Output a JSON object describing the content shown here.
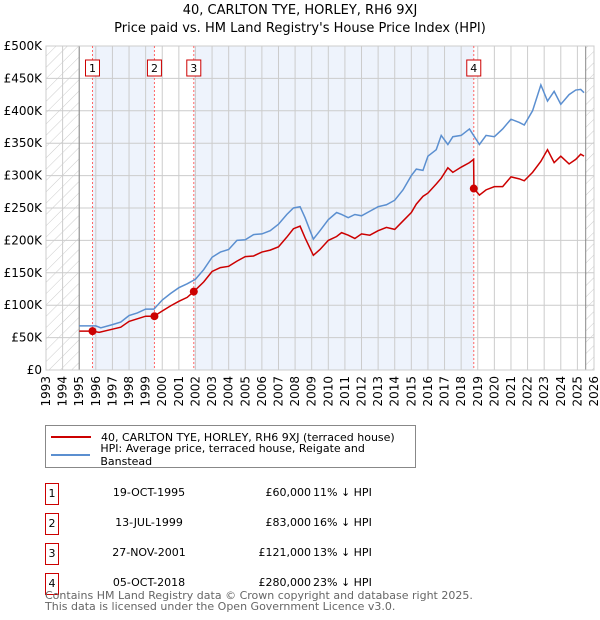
{
  "title": "40, CARLTON TYE, HORLEY, RH6 9XJ",
  "subtitle": "Price paid vs. HM Land Registry's House Price Index (HPI)",
  "chart_data": {
    "type": "line",
    "xlim": [
      1993,
      2026
    ],
    "ylim": [
      0,
      500000
    ],
    "x_ticks": [
      "1993",
      "1994",
      "1995",
      "1996",
      "1997",
      "1998",
      "1999",
      "2000",
      "2001",
      "2002",
      "2003",
      "2004",
      "2005",
      "2006",
      "2007",
      "2008",
      "2009",
      "2010",
      "2011",
      "2012",
      "2013",
      "2014",
      "2015",
      "2016",
      "2017",
      "2018",
      "2019",
      "2020",
      "2021",
      "2022",
      "2023",
      "2024",
      "2025",
      "2026"
    ],
    "y_ticks": [
      {
        "v": 0,
        "l": "£0"
      },
      {
        "v": 50000,
        "l": "£50K"
      },
      {
        "v": 100000,
        "l": "£100K"
      },
      {
        "v": 150000,
        "l": "£150K"
      },
      {
        "v": 200000,
        "l": "£200K"
      },
      {
        "v": 250000,
        "l": "£250K"
      },
      {
        "v": 300000,
        "l": "£300K"
      },
      {
        "v": 350000,
        "l": "£350K"
      },
      {
        "v": 400000,
        "l": "£400K"
      },
      {
        "v": 450000,
        "l": "£450K"
      },
      {
        "v": 500000,
        "l": "£500K"
      }
    ],
    "data_start": 1995,
    "data_end": 2025.5,
    "series": [
      {
        "name": "40, CARLTON TYE, HORLEY, RH6 9XJ (terraced house)",
        "color": "#cc0000",
        "x": [
          1995,
          1995.8,
          1996.2,
          1997,
          1997.5,
          1998,
          1998.5,
          1999,
          1999.5,
          2000,
          2000.5,
          2001,
          2001.5,
          2001.9,
          2002.5,
          2003,
          2003.5,
          2004,
          2004.5,
          2005,
          2005.5,
          2006,
          2006.5,
          2007,
          2007.5,
          2007.9,
          2008.3,
          2008.6,
          2009.1,
          2009.5,
          2010,
          2010.5,
          2010.8,
          2011.2,
          2011.6,
          2012,
          2012.5,
          2013,
          2013.5,
          2014,
          2014.5,
          2015,
          2015.3,
          2015.7,
          2016,
          2016.5,
          2016.8,
          2017.2,
          2017.5,
          2018,
          2018.5,
          2018.75,
          2018.77,
          2019.1,
          2019.5,
          2020,
          2020.5,
          2021,
          2021.5,
          2021.8,
          2022.3,
          2022.8,
          2023.2,
          2023.6,
          2024,
          2024.5,
          2024.9,
          2025.2,
          2025.4
        ],
        "y": [
          60000,
          60000,
          58000,
          63000,
          66000,
          75000,
          79000,
          83000,
          83000,
          91000,
          99000,
          106000,
          112000,
          121000,
          136000,
          152000,
          158000,
          160000,
          168000,
          175000,
          176000,
          182000,
          185000,
          190000,
          205000,
          218000,
          222000,
          204000,
          177000,
          186000,
          200000,
          206000,
          212000,
          208000,
          203000,
          210000,
          208000,
          215000,
          220000,
          217000,
          230000,
          243000,
          256000,
          268000,
          273000,
          287000,
          296000,
          312000,
          305000,
          313000,
          320000,
          325000,
          280000,
          270000,
          278000,
          283000,
          283000,
          298000,
          295000,
          292000,
          305000,
          322000,
          340000,
          320000,
          330000,
          318000,
          325000,
          333000,
          330000
        ]
      },
      {
        "name": "HPI: Average price, terraced house, Reigate and Banstead",
        "color": "#5b8fd0",
        "x": [
          1995,
          1996,
          1996.3,
          1997,
          1997.5,
          1998,
          1998.5,
          1999,
          1999.5,
          2000,
          2000.5,
          2001,
          2001.5,
          2002,
          2002.5,
          2003,
          2003.5,
          2004,
          2004.5,
          2005,
          2005.5,
          2006,
          2006.5,
          2007,
          2007.5,
          2007.9,
          2008.3,
          2008.6,
          2009.1,
          2009.5,
          2010,
          2010.5,
          2010.8,
          2011.2,
          2011.6,
          2012,
          2012.5,
          2013,
          2013.5,
          2014,
          2014.5,
          2015,
          2015.3,
          2015.7,
          2016,
          2016.5,
          2016.8,
          2017.2,
          2017.5,
          2018,
          2018.5,
          2018.75,
          2019.1,
          2019.5,
          2020,
          2020.5,
          2021,
          2021.5,
          2021.8,
          2022.3,
          2022.8,
          2023.2,
          2023.6,
          2024,
          2024.5,
          2024.9,
          2025.2,
          2025.4
        ],
        "y": [
          68000,
          68000,
          65000,
          70000,
          74000,
          84000,
          88000,
          94000,
          94000,
          108000,
          118000,
          127000,
          133000,
          140000,
          155000,
          174000,
          182000,
          186000,
          200000,
          201000,
          209000,
          210000,
          215000,
          225000,
          240000,
          250000,
          252000,
          235000,
          202000,
          215000,
          232000,
          243000,
          240000,
          235000,
          240000,
          238000,
          245000,
          252000,
          255000,
          262000,
          278000,
          300000,
          310000,
          308000,
          330000,
          340000,
          362000,
          348000,
          360000,
          362000,
          372000,
          362000,
          348000,
          362000,
          360000,
          372000,
          387000,
          382000,
          378000,
          400000,
          440000,
          415000,
          430000,
          410000,
          425000,
          432000,
          433000,
          428000
        ]
      }
    ],
    "sales": [
      {
        "n": "1",
        "x": 1995.8,
        "y": 60000,
        "date": "19-OCT-1995",
        "price": "£60,000",
        "diff": "11% ↓ HPI"
      },
      {
        "n": "2",
        "x": 1999.53,
        "y": 83000,
        "date": "13-JUL-1999",
        "price": "£83,000",
        "diff": "16% ↓ HPI"
      },
      {
        "n": "3",
        "x": 2001.9,
        "y": 121000,
        "date": "27-NOV-2001",
        "price": "£121,000",
        "diff": "13% ↓ HPI"
      },
      {
        "n": "4",
        "x": 2018.76,
        "y": 280000,
        "date": "05-OCT-2018",
        "price": "£280,000",
        "diff": "23% ↓ HPI"
      }
    ]
  },
  "legend": {
    "red": "40, CARLTON TYE, HORLEY, RH6 9XJ (terraced house)",
    "blue": "HPI: Average price, terraced house, Reigate and Banstead"
  },
  "footer": {
    "line1": "Contains HM Land Registry data © Crown copyright and database right 2025.",
    "line2": "This data is licensed under the Open Government Licence v3.0."
  }
}
